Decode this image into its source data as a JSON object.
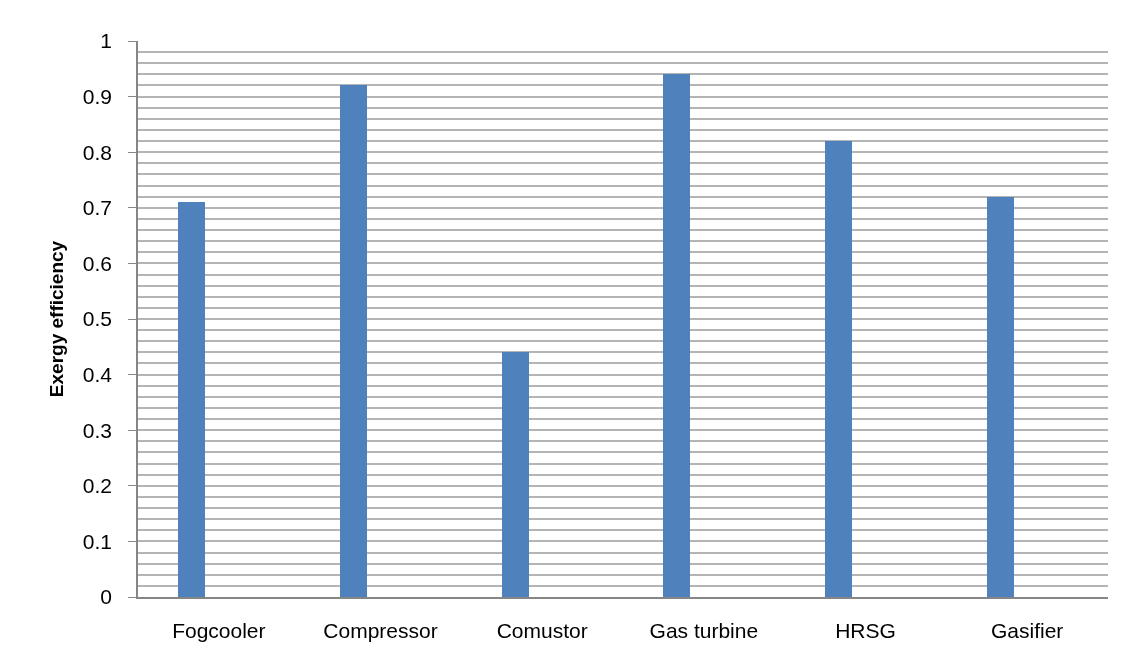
{
  "chart_data": {
    "type": "bar",
    "ylabel": "Exergy efficiency",
    "categories": [
      "Fogcooler",
      "Compressor",
      "Comustor",
      "Gas turbine",
      "HRSG",
      "Gasifier"
    ],
    "values": [
      0.71,
      0.92,
      0.44,
      0.94,
      0.82,
      0.72
    ],
    "color": "#4f81bd",
    "ylim": [
      0,
      1
    ],
    "yticks": [
      0,
      {
        "value": 0.02,
        "label": null
      },
      {
        "value": 0.04,
        "label": null
      },
      {
        "value": 0.06,
        "label": null
      },
      {
        "value": 0.08,
        "label": null
      },
      0.1,
      {
        "value": 0.12,
        "label": null
      },
      {
        "value": 0.14,
        "label": null
      },
      {
        "value": 0.16,
        "label": null
      },
      {
        "value": 0.18,
        "label": null
      },
      0.2,
      {
        "value": 0.22,
        "label": null
      },
      {
        "value": 0.24,
        "label": null
      },
      {
        "value": 0.26,
        "label": null
      },
      {
        "value": 0.28,
        "label": null
      },
      0.3,
      {
        "value": 0.32,
        "label": null
      },
      {
        "value": 0.34,
        "label": null
      },
      {
        "value": 0.36,
        "label": null
      },
      {
        "value": 0.38,
        "label": null
      },
      0.4,
      {
        "value": 0.42,
        "label": null
      },
      {
        "value": 0.44,
        "label": null
      },
      {
        "value": 0.46,
        "label": null
      },
      {
        "value": 0.48,
        "label": null
      },
      0.5,
      {
        "value": 0.52,
        "label": null
      },
      {
        "value": 0.54,
        "label": null
      },
      {
        "value": 0.56,
        "label": null
      },
      {
        "value": 0.58,
        "label": null
      },
      0.6,
      {
        "value": 0.62,
        "label": null
      },
      {
        "value": 0.64,
        "label": null
      },
      {
        "value": 0.66,
        "label": null
      },
      {
        "value": 0.68,
        "label": null
      },
      0.7,
      {
        "value": 0.72,
        "label": null
      },
      {
        "value": 0.74,
        "label": null
      },
      {
        "value": 0.76,
        "label": null
      },
      {
        "value": 0.78,
        "label": null
      },
      0.8,
      {
        "value": 0.82,
        "label": null
      },
      {
        "value": 0.84,
        "label": null
      },
      {
        "value": 0.86,
        "label": null
      },
      {
        "value": 0.88,
        "label": null
      },
      0.9,
      {
        "value": 0.92,
        "label": null
      },
      {
        "value": 0.94,
        "label": null
      },
      {
        "value": 0.96,
        "label": null
      },
      {
        "value": 0.98,
        "label": null
      },
      1
    ],
    "grid": "y"
  }
}
